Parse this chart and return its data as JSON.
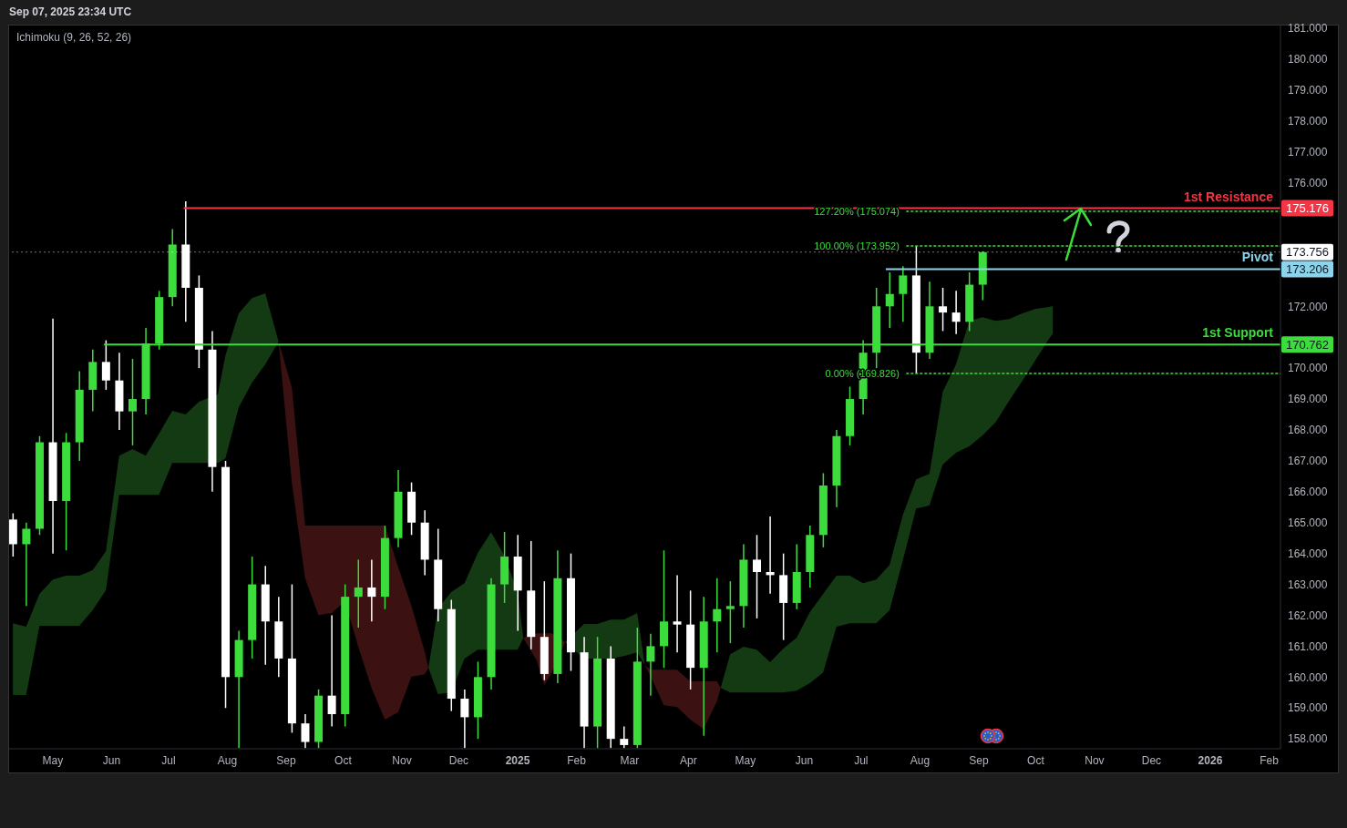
{
  "chart_data": {
    "type": "candlestick",
    "annotations": [
      "Sep 07, 2025 23:34 UTC",
      "Ichimoku (9, 26, 52, 26)",
      {
        "text": "127.20% (175.074)",
        "x": "2025-07-25",
        "y": 175.074
      },
      {
        "text": "100.00% (173.952)",
        "x": "2025-07-25",
        "y": 173.952
      },
      {
        "text": "0.00% (169.826)",
        "x": "2025-07-25",
        "y": 169.826
      }
    ],
    "x": [
      "2024-04-10",
      "2024-04-17",
      "2024-04-24",
      "2024-05-01",
      "2024-05-08",
      "2024-05-15",
      "2024-05-22",
      "2024-05-29",
      "2024-06-05",
      "2024-06-12",
      "2024-06-19",
      "2024-06-26",
      "2024-07-03",
      "2024-07-10",
      "2024-07-17",
      "2024-07-24",
      "2024-07-31",
      "2024-08-07",
      "2024-08-14",
      "2024-08-21",
      "2024-08-28",
      "2024-09-04",
      "2024-09-11",
      "2024-09-18",
      "2024-09-25",
      "2024-10-02",
      "2024-10-09",
      "2024-10-16",
      "2024-10-23",
      "2024-10-30",
      "2024-11-06",
      "2024-11-13",
      "2024-11-20",
      "2024-11-27",
      "2024-12-04",
      "2024-12-11",
      "2024-12-18",
      "2024-12-25",
      "2025-01-01",
      "2025-01-08",
      "2025-01-15",
      "2025-01-22",
      "2025-01-29",
      "2025-02-05",
      "2025-02-12",
      "2025-02-19",
      "2025-02-26",
      "2025-03-05",
      "2025-03-12",
      "2025-03-19",
      "2025-03-26",
      "2025-04-02",
      "2025-04-09",
      "2025-04-16",
      "2025-04-23",
      "2025-04-30",
      "2025-05-07",
      "2025-05-14",
      "2025-05-21",
      "2025-05-28",
      "2025-06-04",
      "2025-06-11",
      "2025-06-18",
      "2025-06-25",
      "2025-07-02",
      "2025-07-09",
      "2025-07-16",
      "2025-07-23",
      "2025-07-30",
      "2025-08-06",
      "2025-08-13",
      "2025-08-20",
      "2025-08-27",
      "2025-09-03"
    ],
    "ohlc": [
      [
        165.1,
        165.3,
        163.9,
        164.3
      ],
      [
        164.3,
        165.0,
        162.3,
        164.8
      ],
      [
        164.8,
        167.8,
        164.6,
        167.6
      ],
      [
        167.6,
        171.6,
        164.0,
        165.7
      ],
      [
        165.7,
        167.9,
        164.1,
        167.6
      ],
      [
        167.6,
        169.9,
        167.0,
        169.3
      ],
      [
        169.3,
        170.6,
        168.6,
        170.2
      ],
      [
        170.2,
        170.9,
        169.3,
        169.6
      ],
      [
        169.6,
        170.5,
        168.0,
        168.6
      ],
      [
        168.6,
        170.3,
        167.5,
        169.0
      ],
      [
        169.0,
        171.3,
        168.5,
        170.8
      ],
      [
        170.8,
        172.5,
        170.6,
        172.3
      ],
      [
        172.3,
        174.5,
        172.0,
        174.0
      ],
      [
        174.0,
        175.4,
        171.5,
        172.6
      ],
      [
        172.6,
        173.0,
        170.0,
        170.6
      ],
      [
        170.6,
        171.2,
        166.0,
        166.8
      ],
      [
        166.8,
        167.0,
        159.0,
        160.0
      ],
      [
        160.0,
        161.5,
        157.7,
        161.2
      ],
      [
        161.2,
        163.9,
        160.6,
        163.0
      ],
      [
        163.0,
        163.6,
        160.4,
        161.8
      ],
      [
        161.8,
        162.6,
        160.0,
        160.6
      ],
      [
        160.6,
        163.0,
        158.2,
        158.5
      ],
      [
        158.5,
        158.8,
        157.7,
        157.9
      ],
      [
        157.9,
        159.6,
        157.7,
        159.4
      ],
      [
        159.4,
        162.0,
        158.4,
        158.8
      ],
      [
        158.8,
        163.0,
        158.4,
        162.6
      ],
      [
        162.6,
        163.8,
        161.6,
        162.9
      ],
      [
        162.9,
        163.8,
        161.8,
        162.6
      ],
      [
        162.6,
        164.9,
        162.2,
        164.5
      ],
      [
        164.5,
        166.7,
        164.2,
        166.0
      ],
      [
        166.0,
        166.3,
        164.6,
        165.0
      ],
      [
        165.0,
        165.4,
        163.3,
        163.8
      ],
      [
        163.8,
        164.8,
        161.8,
        162.2
      ],
      [
        162.2,
        162.5,
        158.9,
        159.3
      ],
      [
        159.3,
        159.6,
        157.7,
        158.7
      ],
      [
        158.7,
        160.5,
        158.0,
        160.0
      ],
      [
        160.0,
        163.2,
        159.6,
        163.0
      ],
      [
        163.0,
        164.7,
        162.4,
        163.9
      ],
      [
        163.9,
        164.6,
        161.5,
        162.8
      ],
      [
        162.8,
        164.4,
        160.9,
        161.3
      ],
      [
        161.3,
        163.1,
        159.9,
        160.1
      ],
      [
        160.1,
        164.1,
        159.8,
        163.2
      ],
      [
        163.2,
        164.0,
        160.2,
        160.8
      ],
      [
        160.8,
        161.3,
        157.7,
        158.4
      ],
      [
        158.4,
        161.3,
        157.7,
        160.6
      ],
      [
        160.6,
        161.0,
        157.7,
        158.0
      ],
      [
        158.0,
        158.4,
        157.7,
        157.8
      ],
      [
        157.8,
        161.6,
        157.7,
        160.5
      ],
      [
        160.5,
        161.4,
        159.4,
        161.0
      ],
      [
        161.0,
        164.1,
        160.3,
        161.8
      ],
      [
        161.8,
        163.3,
        160.8,
        161.7
      ],
      [
        161.7,
        162.8,
        159.6,
        160.3
      ],
      [
        160.3,
        162.6,
        158.1,
        161.8
      ],
      [
        161.8,
        163.2,
        160.8,
        162.2
      ],
      [
        162.2,
        163.1,
        161.1,
        162.3
      ],
      [
        162.3,
        164.3,
        161.6,
        163.8
      ],
      [
        163.8,
        164.6,
        161.9,
        163.4
      ],
      [
        163.4,
        165.2,
        162.7,
        163.3
      ],
      [
        163.3,
        164.0,
        161.2,
        162.4
      ],
      [
        162.4,
        164.3,
        162.2,
        163.4
      ],
      [
        163.4,
        164.9,
        162.9,
        164.6
      ],
      [
        164.6,
        166.6,
        164.2,
        166.2
      ],
      [
        166.2,
        168.0,
        165.5,
        167.8
      ],
      [
        167.8,
        169.4,
        167.5,
        169.0
      ],
      [
        169.0,
        170.9,
        168.5,
        170.5
      ],
      [
        170.5,
        172.6,
        170.0,
        172.0
      ],
      [
        172.0,
        173.1,
        171.3,
        172.4
      ],
      [
        172.4,
        173.3,
        171.5,
        173.0
      ],
      [
        173.0,
        173.952,
        169.826,
        170.5
      ],
      [
        170.5,
        172.8,
        170.3,
        172.0
      ],
      [
        172.0,
        172.6,
        171.2,
        171.8
      ],
      [
        171.8,
        172.5,
        171.1,
        171.5
      ],
      [
        171.5,
        173.1,
        171.2,
        172.7
      ],
      [
        172.7,
        173.78,
        172.2,
        173.756
      ]
    ],
    "colors": [
      "#ffffff",
      "#3ddc3d",
      "#3ddc3d",
      "#ffffff",
      "#3ddc3d",
      "#3ddc3d",
      "#3ddc3d",
      "#ffffff",
      "#ffffff",
      "#3ddc3d",
      "#3ddc3d",
      "#3ddc3d",
      "#3ddc3d",
      "#ffffff",
      "#ffffff",
      "#ffffff",
      "#ffffff",
      "#3ddc3d",
      "#3ddc3d",
      "#ffffff",
      "#ffffff",
      "#ffffff",
      "#ffffff",
      "#3ddc3d",
      "#ffffff",
      "#3ddc3d",
      "#3ddc3d",
      "#ffffff",
      "#3ddc3d",
      "#3ddc3d",
      "#ffffff",
      "#ffffff",
      "#ffffff",
      "#ffffff",
      "#ffffff",
      "#3ddc3d",
      "#3ddc3d",
      "#3ddc3d",
      "#ffffff",
      "#ffffff",
      "#ffffff",
      "#3ddc3d",
      "#ffffff",
      "#ffffff",
      "#3ddc3d",
      "#ffffff",
      "#ffffff",
      "#3ddc3d",
      "#3ddc3d",
      "#3ddc3d",
      "#ffffff",
      "#ffffff",
      "#3ddc3d",
      "#3ddc3d",
      "#3ddc3d",
      "#3ddc3d",
      "#ffffff",
      "#ffffff",
      "#ffffff",
      "#3ddc3d",
      "#3ddc3d",
      "#3ddc3d",
      "#3ddc3d",
      "#3ddc3d",
      "#3ddc3d",
      "#3ddc3d",
      "#3ddc3d",
      "#3ddc3d",
      "#ffffff",
      "#3ddc3d",
      "#ffffff",
      "#ffffff",
      "#3ddc3d",
      "#3ddc3d"
    ],
    "series": [
      {
        "type": "area",
        "color": "#133a13",
        "x": [
          "2024-04-10",
          "2024-04-17",
          "2024-04-24",
          "2024-05-01",
          "2024-05-08",
          "2024-05-15",
          "2024-05-22",
          "2024-05-29",
          "2024-06-05",
          "2024-06-12",
          "2024-06-19",
          "2024-06-26",
          "2024-07-03",
          "2024-07-10",
          "2024-07-17",
          "2024-07-27",
          "2024-07-31",
          "2024-08-07",
          "2024-08-14",
          "2024-08-21",
          "2024-08-28",
          "2024-10-01",
          "2024-11-15",
          "2024-11-20",
          "2024-11-27",
          "2024-12-04",
          "2024-12-11",
          "2024-12-18",
          "2024-12-25",
          "2025-01-01",
          "2025-01-04",
          "2025-01-15",
          "2025-01-26",
          "2025-02-05",
          "2025-02-12",
          "2025-02-19",
          "2025-02-26",
          "2025-03-05",
          "2025-03-09",
          "2025-03-26",
          "2025-04-18",
          "2025-04-23",
          "2025-04-30",
          "2025-05-07",
          "2025-05-14",
          "2025-05-21",
          "2025-05-28",
          "2025-06-04",
          "2025-06-11",
          "2025-06-18",
          "2025-06-25",
          "2025-07-02",
          "2025-07-09",
          "2025-07-16",
          "2025-07-23",
          "2025-07-30",
          "2025-08-06",
          "2025-08-13",
          "2025-08-20",
          "2025-08-27",
          "2025-09-03",
          "2025-09-10",
          "2025-09-17",
          "2025-09-24",
          "2025-10-01",
          "2025-10-08",
          "2025-10-10"
        ],
        "values": [
          null,
          null,
          null,
          null,
          null,
          null,
          null,
          null,
          null,
          null,
          null,
          null,
          null,
          null,
          null,
          null,
          null,
          null,
          null,
          null,
          null,
          null,
          null,
          null,
          null,
          null,
          null,
          null,
          null,
          null,
          null,
          null,
          null,
          null,
          null,
          null,
          null,
          null,
          null,
          null,
          null,
          null,
          null,
          null,
          null,
          null,
          null,
          null,
          null,
          null,
          null,
          null,
          null,
          null,
          null,
          null,
          null,
          null,
          null,
          null,
          null,
          null,
          null,
          null,
          null,
          null,
          null
        ],
        "upper": [
          161.74,
          161.63,
          162.69,
          163.16,
          163.28,
          163.28,
          163.46,
          164.07,
          167.17,
          167.38,
          167.17,
          167.88,
          168.62,
          168.5,
          168.91,
          169.15,
          170.41,
          171.77,
          172.27,
          172.42,
          170.86,
          null,
          160.3,
          162.22,
          162.75,
          163.04,
          164.02,
          164.69,
          163.93,
          162.75,
          161.27,
          null,
          161.13,
          161.72,
          161.72,
          161.86,
          161.86,
          162.07,
          160.39,
          null,
          159.65,
          160.74,
          160.98,
          160.89,
          160.48,
          160.92,
          161.27,
          162.1,
          162.69,
          163.28,
          163.28,
          163.04,
          163.16,
          163.63,
          165.25,
          166.4,
          166.58,
          169.23,
          170.12,
          171.53,
          171.65,
          171.53,
          171.59,
          171.77,
          171.92,
          171.98,
          172.01
        ],
        "lower": [
          159.42,
          159.42,
          161.66,
          161.66,
          161.66,
          161.66,
          162.16,
          162.81,
          165.9,
          165.9,
          165.9,
          165.9,
          166.93,
          166.93,
          166.93,
          166.93,
          167.08,
          168.73,
          169.53,
          170.12,
          170.86,
          null,
          160.3,
          159.45,
          159.5,
          160.6,
          160.89,
          160.89,
          160.89,
          160.89,
          161.27,
          null,
          161.13,
          160.6,
          160.6,
          160.6,
          160.68,
          160.8,
          160.39,
          null,
          159.65,
          159.5,
          159.5,
          159.5,
          159.5,
          159.5,
          159.56,
          159.8,
          160.15,
          161.63,
          161.74,
          161.74,
          161.74,
          162.16,
          163.78,
          165.46,
          165.55,
          166.88,
          167.26,
          167.47,
          167.82,
          168.26,
          168.94,
          169.59,
          170.27,
          170.95,
          171.12
        ]
      },
      {
        "type": "area",
        "color": "#3b1111",
        "x": [
          "2024-08-28",
          "2024-09-04",
          "2024-09-11",
          "2024-09-18",
          "2024-09-25",
          "2024-10-02",
          "2024-10-09",
          "2024-10-16",
          "2024-10-23",
          "2024-10-30",
          "2024-11-06",
          "2024-11-13",
          "2024-11-15",
          "2024-12-01",
          "2025-01-04",
          "2025-01-11",
          "2025-01-15",
          "2025-01-19",
          "2025-01-26",
          "2025-02-15",
          "2025-03-09",
          "2025-03-12",
          "2025-03-19",
          "2025-03-26",
          "2025-04-02",
          "2025-04-09",
          "2025-04-16",
          "2025-04-18"
        ],
        "values": [
          null,
          null,
          null,
          null,
          null,
          null,
          null,
          null,
          null,
          null,
          null,
          null,
          null,
          null,
          null,
          null,
          null,
          null,
          null,
          null,
          null,
          null,
          null,
          null,
          null,
          null,
          null,
          null
        ],
        "upper": [
          170.86,
          169.38,
          164.9,
          164.9,
          164.9,
          164.9,
          164.9,
          164.9,
          164.9,
          163.57,
          162.31,
          160.83,
          160.3,
          null,
          161.27,
          161.42,
          161.42,
          161.42,
          161.13,
          null,
          160.39,
          160.24,
          160.24,
          160.24,
          159.86,
          159.86,
          159.86,
          159.65
        ],
        "lower": [
          170.86,
          166.29,
          163.19,
          162.01,
          162.07,
          162.45,
          160.98,
          159.65,
          158.62,
          158.86,
          160.01,
          160.09,
          160.3,
          null,
          161.27,
          160.54,
          159.74,
          160.15,
          161.13,
          null,
          160.39,
          160.03,
          159.09,
          159.03,
          158.62,
          158.32,
          159.21,
          159.65
        ]
      },
      {
        "type": "line",
        "name": "1st Resistance",
        "color": "#f23645",
        "x": [
          "2024-07-09",
          "2026-02-07"
        ],
        "values": [
          175.176,
          175.176
        ]
      },
      {
        "type": "line",
        "name": "Pivot",
        "color": "#8cd3ec",
        "x": [
          "2025-07-14",
          "2026-02-07"
        ],
        "values": [
          173.206,
          173.206
        ]
      },
      {
        "type": "line",
        "name": "1st Support",
        "color": "#3ddc3d",
        "x": [
          "2024-05-28",
          "2026-02-07"
        ],
        "values": [
          170.762,
          170.762
        ]
      },
      {
        "type": "line",
        "color": "#3ddc3d",
        "line_style": "dotted",
        "x": [
          "2025-07-25",
          "2026-02-07"
        ],
        "values": [
          175.074,
          175.074
        ]
      },
      {
        "type": "line",
        "color": "#3ddc3d",
        "line_style": "dotted",
        "x": [
          "2025-07-25",
          "2026-02-07"
        ],
        "values": [
          173.952,
          173.952
        ]
      },
      {
        "type": "line",
        "color": "#3ddc3d",
        "line_style": "dotted",
        "x": [
          "2025-07-25",
          "2026-02-07"
        ],
        "values": [
          169.826,
          169.826
        ]
      }
    ],
    "ref_lines": [
      {
        "axis": "y",
        "value": 173.756,
        "color": "#ffffff",
        "line_style": "dotted"
      }
    ],
    "xlim": [
      "2024-04-08",
      "2026-02-07"
    ],
    "xticks": [
      {
        "value": "2024-05-01",
        "label": "May"
      },
      {
        "value": "2024-06-01",
        "label": "Jun"
      },
      {
        "value": "2024-07-01",
        "label": "Jul"
      },
      {
        "value": "2024-08-01",
        "label": "Aug"
      },
      {
        "value": "2024-09-01",
        "label": "Sep"
      },
      {
        "value": "2024-10-01",
        "label": "Oct"
      },
      {
        "value": "2024-11-01",
        "label": "Nov"
      },
      {
        "value": "2024-12-01",
        "label": "Dec"
      },
      {
        "value": "2025-01-01",
        "label": "2025"
      },
      {
        "value": "2025-02-01",
        "label": "Feb"
      },
      {
        "value": "2025-03-01",
        "label": "Mar"
      },
      {
        "value": "2025-04-01",
        "label": "Apr"
      },
      {
        "value": "2025-05-01",
        "label": "May"
      },
      {
        "value": "2025-06-01",
        "label": "Jun"
      },
      {
        "value": "2025-07-01",
        "label": "Jul"
      },
      {
        "value": "2025-08-01",
        "label": "Aug"
      },
      {
        "value": "2025-09-01",
        "label": "Sep"
      },
      {
        "value": "2025-10-01",
        "label": "Oct"
      },
      {
        "value": "2025-11-01",
        "label": "Nov"
      },
      {
        "value": "2025-12-01",
        "label": "Dec"
      },
      {
        "value": "2026-01-01",
        "label": "2026"
      },
      {
        "value": "2026-02-01",
        "label": "Feb"
      }
    ],
    "ylim": [
      157.68,
      181.09
    ],
    "yticks": [
      {
        "value": 158,
        "label": "158.000"
      },
      {
        "value": 159,
        "label": "159.000"
      },
      {
        "value": 160,
        "label": "160.000"
      },
      {
        "value": 161,
        "label": "161.000"
      },
      {
        "value": 162,
        "label": "162.000"
      },
      {
        "value": 163,
        "label": "163.000"
      },
      {
        "value": 164,
        "label": "164.000"
      },
      {
        "value": 165,
        "label": "165.000"
      },
      {
        "value": 166,
        "label": "166.000"
      },
      {
        "value": 167,
        "label": "167.000"
      },
      {
        "value": 168,
        "label": "168.000"
      },
      {
        "value": 169,
        "label": "169.000"
      },
      {
        "value": 170,
        "label": "170.000"
      },
      170.762,
      {
        "value": 172,
        "label": "172.000"
      },
      173.206,
      173.756,
      175.176,
      {
        "value": 176,
        "label": "176.000"
      },
      {
        "value": 177,
        "label": "177.000"
      },
      {
        "value": 178,
        "label": "178.000"
      },
      {
        "value": 179,
        "label": "179.000"
      },
      {
        "value": 180,
        "label": "180.000"
      },
      {
        "value": 181,
        "label": "181.000"
      }
    ]
  }
}
